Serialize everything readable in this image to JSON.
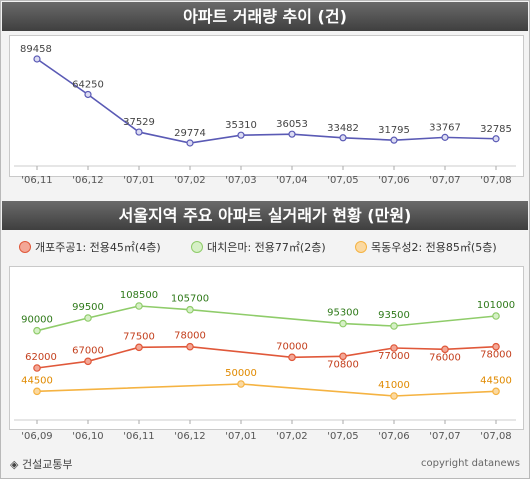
{
  "chart_data": [
    {
      "type": "line",
      "title": "아파트 거래량 추이 (건)",
      "categories": [
        "'06,11",
        "'06,12",
        "'07,01",
        "'07,02",
        "'07,03",
        "'07,04",
        "'07,05",
        "'07,06",
        "'07,07",
        "'07,08"
      ],
      "series": [
        {
          "name": "",
          "color": "#5a5ab5",
          "values": [
            89458,
            64250,
            37529,
            29774,
            35310,
            36053,
            33482,
            31795,
            33767,
            32785
          ]
        }
      ]
    },
    {
      "type": "line",
      "title": "서울지역 주요 아파트 실거래가 현황 (만원)",
      "categories": [
        "'06,09",
        "'06,10",
        "'06,11",
        "'06,12",
        "'07,01",
        "'07,02",
        "'07,05",
        "'07,06",
        "'07,07",
        "'07,08"
      ],
      "series": [
        {
          "name": "개포주공1: 전용45㎡(4층)",
          "color": "#e0583a",
          "values": [
            62000,
            67000,
            77500,
            78000,
            null,
            70000,
            70800,
            77000,
            76000,
            78000
          ]
        },
        {
          "name": "대치은마: 전용77㎡(2층)",
          "color": "#8fcc6a",
          "values": [
            90000,
            99500,
            108500,
            105700,
            null,
            null,
            95300,
            93500,
            null,
            101000
          ]
        },
        {
          "name": "목동우성2: 전용85㎡(5층)",
          "color": "#f5b342",
          "values": [
            44500,
            null,
            null,
            null,
            50000,
            null,
            null,
            41000,
            null,
            44500
          ]
        }
      ]
    }
  ],
  "footer": {
    "source": "◈ 건설교통부",
    "copyright": "copyright datanews"
  }
}
